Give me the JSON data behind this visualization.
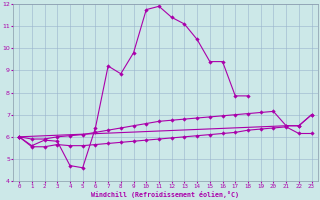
{
  "xlabel": "Windchill (Refroidissement éolien,°C)",
  "xlim": [
    -0.5,
    23.5
  ],
  "ylim": [
    4,
    12
  ],
  "yticks": [
    4,
    5,
    6,
    7,
    8,
    9,
    10,
    11,
    12
  ],
  "xticks": [
    0,
    1,
    2,
    3,
    4,
    5,
    6,
    7,
    8,
    9,
    10,
    11,
    12,
    13,
    14,
    15,
    16,
    17,
    18,
    19,
    20,
    21,
    22,
    23
  ],
  "background_color": "#cce8e8",
  "grid_color": "#99b3cc",
  "line_color": "#aa00aa",
  "line1_x": [
    0,
    1,
    2,
    3,
    4,
    5,
    6,
    7,
    8,
    9,
    10,
    11,
    12,
    13,
    14,
    15,
    16,
    17,
    18
  ],
  "line1_y": [
    6.0,
    5.6,
    5.85,
    5.8,
    4.7,
    4.6,
    6.4,
    9.2,
    8.85,
    9.8,
    11.75,
    11.9,
    11.4,
    11.1,
    10.4,
    9.4,
    9.4,
    7.85,
    7.85
  ],
  "line2_x": [
    0,
    21,
    22,
    23
  ],
  "line2_y": [
    6.0,
    6.5,
    6.5,
    7.0
  ],
  "line3_x": [
    0,
    1,
    2,
    3,
    4,
    5,
    6,
    7,
    8,
    9,
    10,
    11,
    12,
    13,
    14,
    15,
    16,
    17,
    18,
    19,
    20,
    21,
    22,
    23
  ],
  "line3_y": [
    6.0,
    5.9,
    5.9,
    6.0,
    6.05,
    6.1,
    6.2,
    6.3,
    6.4,
    6.5,
    6.6,
    6.7,
    6.75,
    6.8,
    6.85,
    6.9,
    6.95,
    7.0,
    7.05,
    7.1,
    7.15,
    6.5,
    6.5,
    7.0
  ],
  "line4_x": [
    0,
    1,
    2,
    3,
    4,
    5,
    6,
    7,
    8,
    9,
    10,
    11,
    12,
    13,
    14,
    15,
    16,
    17,
    18,
    19,
    20,
    21,
    22,
    23
  ],
  "line4_y": [
    6.0,
    5.55,
    5.55,
    5.65,
    5.6,
    5.6,
    5.65,
    5.7,
    5.75,
    5.8,
    5.85,
    5.9,
    5.95,
    6.0,
    6.05,
    6.1,
    6.15,
    6.2,
    6.3,
    6.35,
    6.4,
    6.45,
    6.15,
    6.15
  ]
}
